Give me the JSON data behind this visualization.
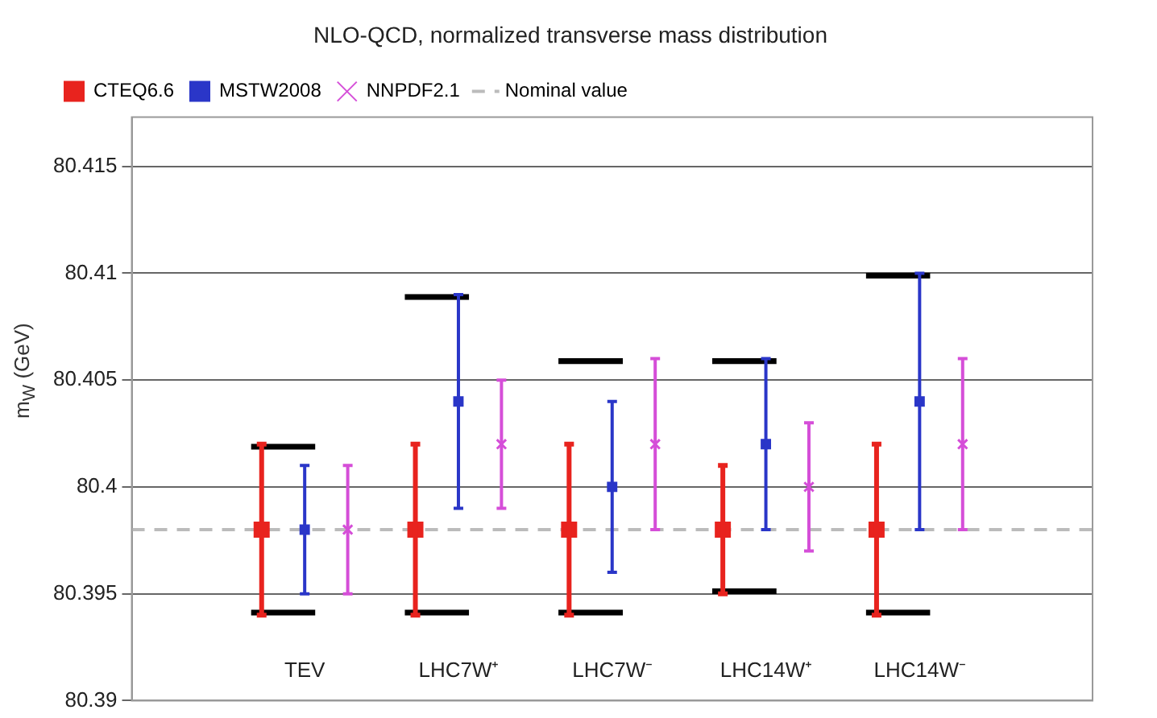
{
  "chart_data": {
    "type": "scatter",
    "title": "NLO-QCD, normalized transverse mass distribution",
    "ylabel": "m$_{W}$ (GeV)",
    "categories": [
      "TEV",
      "LHC7W⁺",
      "LHC7W⁻",
      "LHC14W⁺",
      "LHC14W⁻"
    ],
    "series": [
      {
        "name": "CTEQ6.6",
        "color": "#e8231e",
        "marker": "square",
        "values": [
          80.398,
          80.398,
          80.398,
          80.398,
          80.398
        ],
        "errors": [
          [
            80.394,
            80.402
          ],
          [
            80.394,
            80.402
          ],
          [
            80.394,
            80.402
          ],
          [
            80.395,
            80.401
          ],
          [
            80.394,
            80.402
          ]
        ]
      },
      {
        "name": "MSTW2008",
        "color": "#2a36c8",
        "marker": "square",
        "values": [
          80.398,
          80.404,
          80.4,
          80.402,
          80.404
        ],
        "errors": [
          [
            80.395,
            80.401
          ],
          [
            80.399,
            80.409
          ],
          [
            80.396,
            80.404
          ],
          [
            80.398,
            80.406
          ],
          [
            80.398,
            80.41
          ]
        ]
      },
      {
        "name": "NNPDF2.1",
        "color": "#d54ed8",
        "marker": "cross",
        "values": [
          80.398,
          80.402,
          80.402,
          80.4,
          80.402
        ],
        "errors": [
          [
            80.395,
            80.401
          ],
          [
            80.399,
            80.405
          ],
          [
            80.398,
            80.406
          ],
          [
            80.397,
            80.403
          ],
          [
            80.398,
            80.406
          ]
        ]
      },
      {
        "type": "bar",
        "color": "#000000",
        "base": [
          80.394,
          80.394,
          80.394,
          80.395,
          80.394
        ],
        "values": [
          0.008,
          0.015,
          0.012,
          0.011,
          0.016
        ]
      }
    ],
    "ref_lines": [
      {
        "axis": "y",
        "value": 80.398,
        "label": "Nominal value",
        "color": "#bbbbbb",
        "line_style": "dashed"
      }
    ],
    "ylim": [
      80.39,
      80.4173
    ],
    "yticks": [
      80.39,
      80.395,
      80.4,
      80.405,
      80.41,
      80.415
    ],
    "grid": "y",
    "legend": "top left"
  }
}
